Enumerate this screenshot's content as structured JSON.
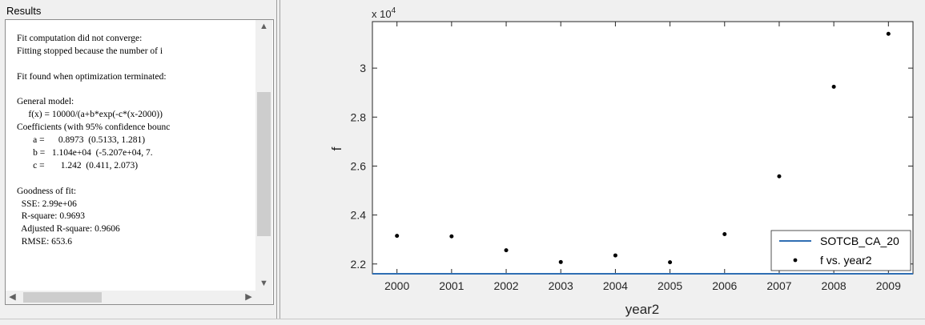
{
  "results": {
    "title": "Results",
    "lines": [
      "Fit computation did not converge:",
      "Fitting stopped because the number of i",
      "",
      "Fit found when optimization terminated:",
      "",
      "General model:",
      "     f(x) = 10000/(a+b*exp(-c*(x-2000))",
      "Coefficients (with 95% confidence bounc",
      "       a =      0.8973  (0.5133, 1.281)",
      "       b =   1.104e+04  (-5.207e+04, 7.",
      "       c =       1.242  (0.411, 2.073)",
      "",
      "Goodness of fit:",
      "  SSE: 2.99e+06",
      "  R-square: 0.9693",
      "  Adjusted R-square: 0.9606",
      "  RMSE: 653.6"
    ]
  },
  "scroll_icons": {
    "up": "▲",
    "down": "▼",
    "left": "◀",
    "right": "▶"
  },
  "chart_data": {
    "type": "scatter",
    "xlabel": "year2",
    "ylabel": "f",
    "y_exponent_label": "x 10",
    "y_exponent_power": "4",
    "x_ticks": [
      2000,
      2001,
      2002,
      2003,
      2004,
      2005,
      2006,
      2007,
      2008,
      2009
    ],
    "y_ticks": [
      2.2,
      2.4,
      2.6,
      2.8,
      3
    ],
    "xlim": [
      1999.55,
      2009.45
    ],
    "ylim": [
      21600,
      31900
    ],
    "points": {
      "name": "f vs. year2",
      "x": [
        2000,
        2001,
        2002,
        2003,
        2004,
        2005,
        2006,
        2007,
        2008,
        2009
      ],
      "y": [
        23150,
        23130,
        22560,
        22080,
        22350,
        22070,
        23220,
        25580,
        29240,
        31400
      ]
    },
    "fit": {
      "name": "SOTCB_CA_20",
      "a": 0.8973,
      "b": 11040,
      "c": 1.242,
      "x0": 2000,
      "scale": 10000,
      "color": "#2f6eb3"
    },
    "point_color": "#000000",
    "legend_position": "bottom-right",
    "grid": false
  }
}
